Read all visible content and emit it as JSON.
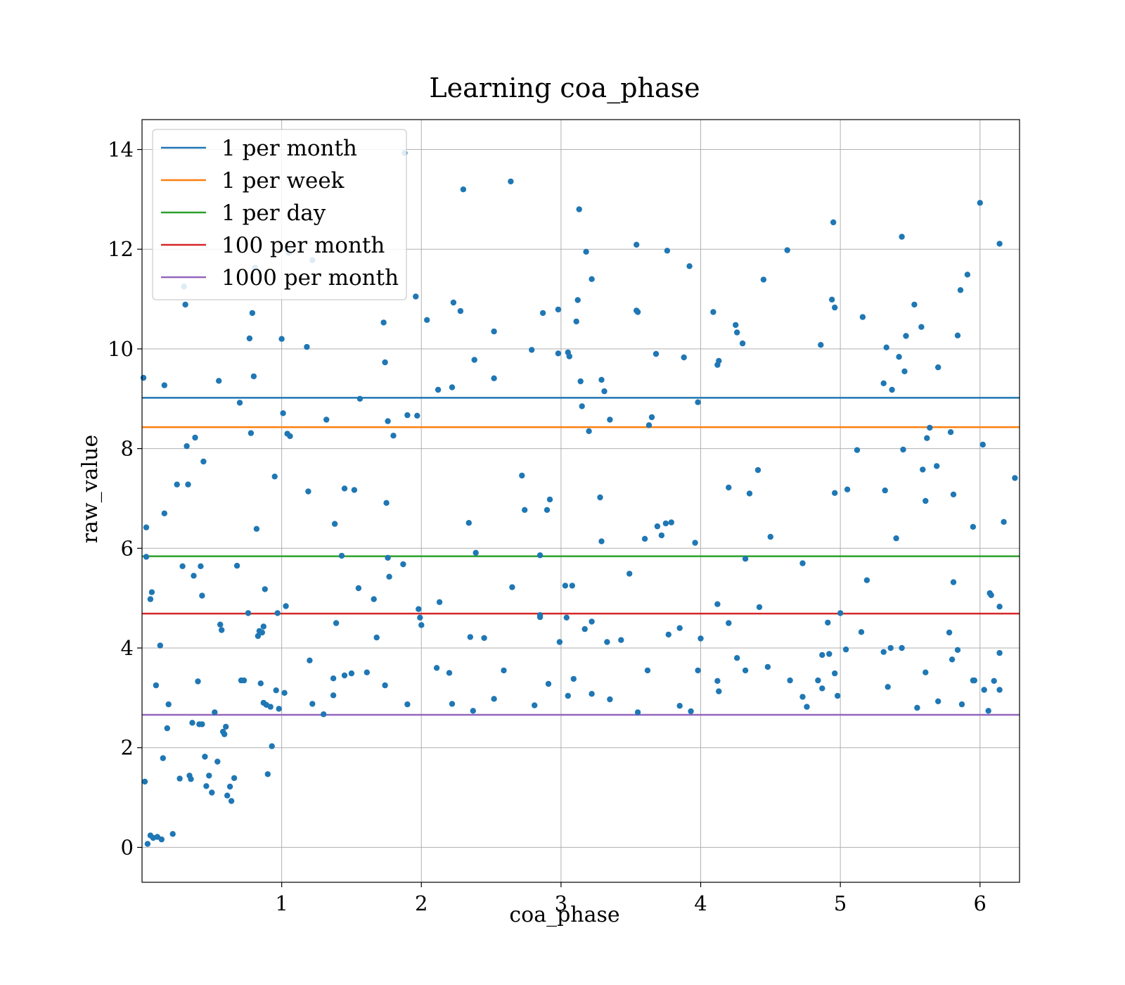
{
  "chart_data": {
    "type": "scatter",
    "title": "Learning coa_phase",
    "xlabel": "coa_phase",
    "ylabel": "raw_value",
    "xlim": [
      0.0,
      6.283
    ],
    "ylim": [
      -0.7,
      14.6
    ],
    "xticks": [
      1,
      2,
      3,
      4,
      5,
      6
    ],
    "yticks": [
      0,
      2,
      4,
      6,
      8,
      10,
      12,
      14
    ],
    "grid": true,
    "legend_position": "top-left",
    "point_color": "#1f77b4",
    "reference_lines": [
      {
        "name": "1 per month",
        "y": 9.02,
        "color": "#1f77b4"
      },
      {
        "name": "1 per week",
        "y": 8.43,
        "color": "#ff7f0e"
      },
      {
        "name": "1 per day",
        "y": 5.84,
        "color": "#2ca02c"
      },
      {
        "name": "100 per month",
        "y": 4.69,
        "color": "#d62728"
      },
      {
        "name": "1000 per month",
        "y": 2.66,
        "color": "#9467bd"
      }
    ],
    "points": [
      [
        0.01,
        9.42
      ],
      [
        0.02,
        1.32
      ],
      [
        0.04,
        0.07
      ],
      [
        0.06,
        0.24
      ],
      [
        0.08,
        0.19
      ],
      [
        0.11,
        0.21
      ],
      [
        0.14,
        0.16
      ],
      [
        0.03,
        6.42
      ],
      [
        0.03,
        5.83
      ],
      [
        0.06,
        4.98
      ],
      [
        0.07,
        5.12
      ],
      [
        0.1,
        3.25
      ],
      [
        0.13,
        4.05
      ],
      [
        0.15,
        1.79
      ],
      [
        0.16,
        6.7
      ],
      [
        0.16,
        9.27
      ],
      [
        0.18,
        2.39
      ],
      [
        0.22,
        0.27
      ],
      [
        0.25,
        7.28
      ],
      [
        0.27,
        1.38
      ],
      [
        0.29,
        5.64
      ],
      [
        0.3,
        11.25
      ],
      [
        0.31,
        10.89
      ],
      [
        0.32,
        8.05
      ],
      [
        0.33,
        7.28
      ],
      [
        0.34,
        1.44
      ],
      [
        0.35,
        1.37
      ],
      [
        0.36,
        2.5
      ],
      [
        0.37,
        5.45
      ],
      [
        0.38,
        8.22
      ],
      [
        0.4,
        3.33
      ],
      [
        0.41,
        2.47
      ],
      [
        0.42,
        5.64
      ],
      [
        0.43,
        5.05
      ],
      [
        0.44,
        7.74
      ],
      [
        0.45,
        1.82
      ],
      [
        0.46,
        1.23
      ],
      [
        0.48,
        1.44
      ],
      [
        0.5,
        1.1
      ],
      [
        0.52,
        2.71
      ],
      [
        0.54,
        1.72
      ],
      [
        0.55,
        9.36
      ],
      [
        0.56,
        4.47
      ],
      [
        0.57,
        4.36
      ],
      [
        0.58,
        2.32
      ],
      [
        0.59,
        2.27
      ],
      [
        0.6,
        2.42
      ],
      [
        0.61,
        1.04
      ],
      [
        0.63,
        1.22
      ],
      [
        0.64,
        0.93
      ],
      [
        0.66,
        1.39
      ],
      [
        0.68,
        5.65
      ],
      [
        0.7,
        8.92
      ],
      [
        0.73,
        3.35
      ],
      [
        0.76,
        4.7
      ],
      [
        0.77,
        10.21
      ],
      [
        0.78,
        8.31
      ],
      [
        0.79,
        10.72
      ],
      [
        0.8,
        9.45
      ],
      [
        0.81,
        11.63
      ],
      [
        0.82,
        6.39
      ],
      [
        0.83,
        4.24
      ],
      [
        0.84,
        4.34
      ],
      [
        0.85,
        3.29
      ],
      [
        0.86,
        4.31
      ],
      [
        0.87,
        4.43
      ],
      [
        0.88,
        5.18
      ],
      [
        0.89,
        2.86
      ],
      [
        0.9,
        1.47
      ],
      [
        0.92,
        2.82
      ],
      [
        0.93,
        2.03
      ],
      [
        0.95,
        7.44
      ],
      [
        0.96,
        3.15
      ],
      [
        0.97,
        4.7
      ],
      [
        1.0,
        10.2
      ],
      [
        1.01,
        8.71
      ],
      [
        1.02,
        3.1
      ],
      [
        1.03,
        4.84
      ],
      [
        1.04,
        8.3
      ],
      [
        1.05,
        11.93
      ],
      [
        1.06,
        8.25
      ],
      [
        1.18,
        10.04
      ],
      [
        1.19,
        7.14
      ],
      [
        1.2,
        3.75
      ],
      [
        1.22,
        11.78
      ],
      [
        1.32,
        8.58
      ],
      [
        1.38,
        6.49
      ],
      [
        1.39,
        4.5
      ],
      [
        1.43,
        5.85
      ],
      [
        1.45,
        7.2
      ],
      [
        1.5,
        3.49
      ],
      [
        1.52,
        7.17
      ],
      [
        1.55,
        5.2
      ],
      [
        1.56,
        9.0
      ],
      [
        1.66,
        4.98
      ],
      [
        1.68,
        4.21
      ],
      [
        1.73,
        10.53
      ],
      [
        1.74,
        9.73
      ],
      [
        1.75,
        6.91
      ],
      [
        1.76,
        8.55
      ],
      [
        1.76,
        5.81
      ],
      [
        1.77,
        5.43
      ],
      [
        1.8,
        8.26
      ],
      [
        1.87,
        5.68
      ],
      [
        1.88,
        13.93
      ],
      [
        1.9,
        8.67
      ],
      [
        1.96,
        11.05
      ],
      [
        1.97,
        8.66
      ],
      [
        1.98,
        4.78
      ],
      [
        1.99,
        4.61
      ],
      [
        2.0,
        4.46
      ],
      [
        2.04,
        10.58
      ],
      [
        2.12,
        9.18
      ],
      [
        2.13,
        4.92
      ],
      [
        2.22,
        9.23
      ],
      [
        2.23,
        10.93
      ],
      [
        2.28,
        10.76
      ],
      [
        2.3,
        13.2
      ],
      [
        2.34,
        6.51
      ],
      [
        2.35,
        4.22
      ],
      [
        2.38,
        9.78
      ],
      [
        2.39,
        5.91
      ],
      [
        2.52,
        10.35
      ],
      [
        2.52,
        9.41
      ],
      [
        2.64,
        13.36
      ],
      [
        2.65,
        5.22
      ],
      [
        2.72,
        7.46
      ],
      [
        2.74,
        6.77
      ],
      [
        2.79,
        9.98
      ],
      [
        2.85,
        5.86
      ],
      [
        2.85,
        4.62
      ],
      [
        2.87,
        10.72
      ],
      [
        2.9,
        6.77
      ],
      [
        2.92,
        6.98
      ],
      [
        2.98,
        10.79
      ],
      [
        2.98,
        9.91
      ],
      [
        2.99,
        4.12
      ],
      [
        3.05,
        9.93
      ],
      [
        3.06,
        9.85
      ],
      [
        3.08,
        5.25
      ],
      [
        3.11,
        10.55
      ],
      [
        3.12,
        10.98
      ],
      [
        3.13,
        12.8
      ],
      [
        3.14,
        9.35
      ],
      [
        3.15,
        8.85
      ],
      [
        3.18,
        11.95
      ],
      [
        3.2,
        8.35
      ],
      [
        3.22,
        11.4
      ],
      [
        3.28,
        7.02
      ],
      [
        3.29,
        6.14
      ],
      [
        3.29,
        9.38
      ],
      [
        3.31,
        9.15
      ],
      [
        3.35,
        8.58
      ],
      [
        3.49,
        5.49
      ],
      [
        3.54,
        12.09
      ],
      [
        3.54,
        10.77
      ],
      [
        3.55,
        10.74
      ],
      [
        3.6,
        6.19
      ],
      [
        3.63,
        8.47
      ],
      [
        3.65,
        8.63
      ],
      [
        3.68,
        9.9
      ],
      [
        3.69,
        6.44
      ],
      [
        3.72,
        6.26
      ],
      [
        3.75,
        6.5
      ],
      [
        3.76,
        11.97
      ],
      [
        3.79,
        6.52
      ],
      [
        3.88,
        9.83
      ],
      [
        3.92,
        11.66
      ],
      [
        3.96,
        6.11
      ],
      [
        3.98,
        8.93
      ],
      [
        4.09,
        10.74
      ],
      [
        4.12,
        9.68
      ],
      [
        4.13,
        9.76
      ],
      [
        4.2,
        7.22
      ],
      [
        4.25,
        10.48
      ],
      [
        4.26,
        10.33
      ],
      [
        4.3,
        10.11
      ],
      [
        4.35,
        7.1
      ],
      [
        4.41,
        7.57
      ],
      [
        4.45,
        11.39
      ],
      [
        4.5,
        6.23
      ],
      [
        4.62,
        11.98
      ],
      [
        4.86,
        10.08
      ],
      [
        4.94,
        10.99
      ],
      [
        4.95,
        12.54
      ],
      [
        4.96,
        10.83
      ],
      [
        4.96,
        7.11
      ],
      [
        5.05,
        7.18
      ],
      [
        5.12,
        7.97
      ],
      [
        5.16,
        10.64
      ],
      [
        5.31,
        9.31
      ],
      [
        5.32,
        7.16
      ],
      [
        5.33,
        10.03
      ],
      [
        5.37,
        9.18
      ],
      [
        5.4,
        6.2
      ],
      [
        5.42,
        9.84
      ],
      [
        5.44,
        12.25
      ],
      [
        5.45,
        7.98
      ],
      [
        5.46,
        9.55
      ],
      [
        5.47,
        10.26
      ],
      [
        5.53,
        10.89
      ],
      [
        5.58,
        10.44
      ],
      [
        5.59,
        7.58
      ],
      [
        5.61,
        6.95
      ],
      [
        5.62,
        8.21
      ],
      [
        5.64,
        8.42
      ],
      [
        5.69,
        7.65
      ],
      [
        5.7,
        9.63
      ],
      [
        5.79,
        8.33
      ],
      [
        5.81,
        7.08
      ],
      [
        5.84,
        10.27
      ],
      [
        5.86,
        11.18
      ],
      [
        5.91,
        11.49
      ],
      [
        5.95,
        6.43
      ],
      [
        6.0,
        12.93
      ],
      [
        6.02,
        8.08
      ],
      [
        6.14,
        12.11
      ],
      [
        6.17,
        6.53
      ],
      [
        6.25,
        7.41
      ],
      [
        6.07,
        5.1
      ],
      [
        6.08,
        5.06
      ],
      [
        6.14,
        4.83
      ],
      [
        5.81,
        5.32
      ],
      [
        5.95,
        3.35
      ],
      [
        5.19,
        5.36
      ],
      [
        5.15,
        4.32
      ],
      [
        5.0,
        4.7
      ],
      [
        4.91,
        4.51
      ],
      [
        4.87,
        3.86
      ],
      [
        4.73,
        5.7
      ],
      [
        4.42,
        4.82
      ],
      [
        4.32,
        5.79
      ],
      [
        4.2,
        4.5
      ],
      [
        4.12,
        4.88
      ],
      [
        4.0,
        4.19
      ],
      [
        3.85,
        4.4
      ],
      [
        3.77,
        4.27
      ],
      [
        3.62,
        3.55
      ],
      [
        3.43,
        4.16
      ],
      [
        3.33,
        4.12
      ],
      [
        3.22,
        4.53
      ],
      [
        3.17,
        4.38
      ],
      [
        3.04,
        4.61
      ],
      [
        3.03,
        5.25
      ],
      [
        2.85,
        4.66
      ],
      [
        2.45,
        4.2
      ],
      [
        2.11,
        3.6
      ],
      [
        2.2,
        3.5
      ],
      [
        1.61,
        3.51
      ],
      [
        1.45,
        3.45
      ],
      [
        1.37,
        3.39
      ],
      [
        1.37,
        3.05
      ],
      [
        0.71,
        3.35
      ],
      [
        0.87,
        2.9
      ],
      [
        0.43,
        2.47
      ],
      [
        0.19,
        2.87
      ],
      [
        0.98,
        2.78
      ],
      [
        1.22,
        2.88
      ],
      [
        1.3,
        2.67
      ],
      [
        1.74,
        3.25
      ],
      [
        1.9,
        2.87
      ],
      [
        2.22,
        2.88
      ],
      [
        2.37,
        2.74
      ],
      [
        2.52,
        2.98
      ],
      [
        2.59,
        3.55
      ],
      [
        2.81,
        2.85
      ],
      [
        2.91,
        3.28
      ],
      [
        3.05,
        3.04
      ],
      [
        3.09,
        3.38
      ],
      [
        3.22,
        3.08
      ],
      [
        3.35,
        2.97
      ],
      [
        3.55,
        2.71
      ],
      [
        3.85,
        2.84
      ],
      [
        3.93,
        2.73
      ],
      [
        3.98,
        3.55
      ],
      [
        4.12,
        3.34
      ],
      [
        4.13,
        3.13
      ],
      [
        4.26,
        3.8
      ],
      [
        4.32,
        3.55
      ],
      [
        4.48,
        3.62
      ],
      [
        4.64,
        3.35
      ],
      [
        4.73,
        3.02
      ],
      [
        4.76,
        2.82
      ],
      [
        4.84,
        3.35
      ],
      [
        4.87,
        3.19
      ],
      [
        4.92,
        3.88
      ],
      [
        4.96,
        3.49
      ],
      [
        4.98,
        3.04
      ],
      [
        5.04,
        3.97
      ],
      [
        5.31,
        3.92
      ],
      [
        5.34,
        3.22
      ],
      [
        5.36,
        4.0
      ],
      [
        5.44,
        4.0
      ],
      [
        5.55,
        2.8
      ],
      [
        5.61,
        3.51
      ],
      [
        5.7,
        2.93
      ],
      [
        5.78,
        4.31
      ],
      [
        5.8,
        3.77
      ],
      [
        5.84,
        3.96
      ],
      [
        5.87,
        2.87
      ],
      [
        5.96,
        3.35
      ],
      [
        6.03,
        3.16
      ],
      [
        6.06,
        2.74
      ],
      [
        6.1,
        3.34
      ],
      [
        6.14,
        3.16
      ],
      [
        6.14,
        3.9
      ]
    ]
  }
}
